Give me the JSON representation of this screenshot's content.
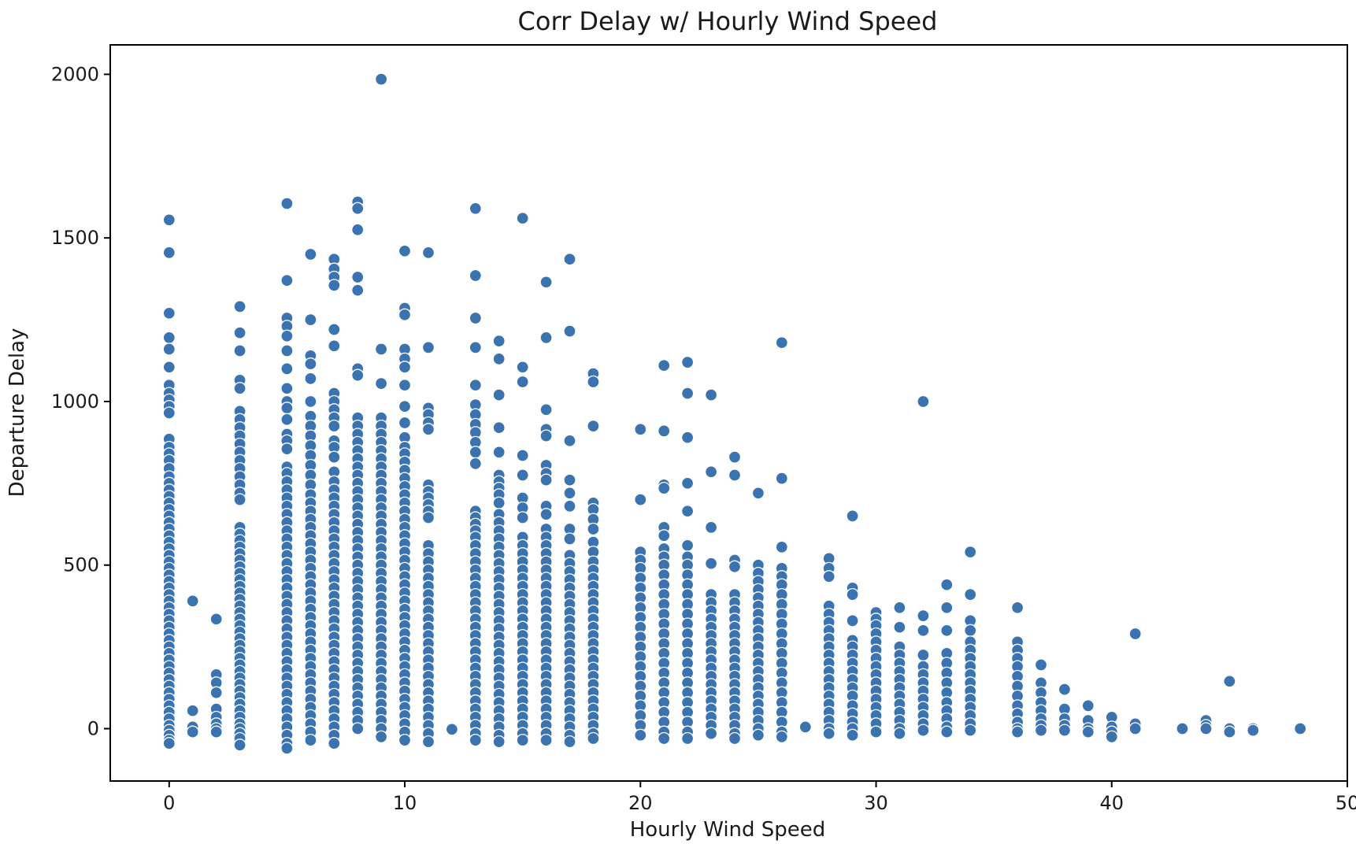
{
  "chart_data": {
    "type": "scatter",
    "title": "Corr Delay w/ Hourly Wind Speed",
    "xlabel": "Hourly Wind Speed",
    "ylabel": "Departure Delay",
    "xlim": [
      -2.5,
      50
    ],
    "ylim": [
      -160,
      2090
    ],
    "xticks": [
      0,
      10,
      20,
      30,
      40,
      50
    ],
    "yticks": [
      0,
      500,
      1000,
      1500,
      2000
    ],
    "grid": false,
    "marker_color": "#3a73b0",
    "marker_edge_color": "#ffffff",
    "columns": [
      {
        "x": 0,
        "y": [
          1555,
          1455,
          1270,
          1195,
          1160,
          1105,
          1050,
          1025,
          1005,
          985,
          965,
          885,
          860,
          840,
          820,
          795,
          770,
          750,
          730,
          710,
          690,
          670,
          650,
          630,
          610,
          590,
          570,
          550,
          530,
          510,
          490,
          470,
          450,
          430,
          410,
          390,
          370,
          350,
          330,
          310,
          290,
          270,
          250,
          230,
          210,
          190,
          170,
          150,
          130,
          110,
          90,
          70,
          50,
          30,
          10,
          -5,
          -20,
          -35,
          -45
        ]
      },
      {
        "x": 1,
        "y": [
          390,
          55,
          5,
          -10
        ]
      },
      {
        "x": 2,
        "y": [
          335,
          165,
          140,
          110,
          60,
          35,
          15,
          0,
          -10
        ]
      },
      {
        "x": 3,
        "y": [
          1290,
          1210,
          1155,
          1065,
          1040,
          970,
          945,
          920,
          895,
          870,
          845,
          820,
          795,
          770,
          745,
          720,
          700,
          615,
          595,
          575,
          555,
          535,
          515,
          495,
          475,
          455,
          435,
          415,
          395,
          375,
          355,
          335,
          315,
          295,
          275,
          255,
          235,
          215,
          195,
          175,
          155,
          135,
          115,
          95,
          75,
          55,
          35,
          15,
          0,
          -15,
          -30,
          -50
        ]
      },
      {
        "x": 5,
        "y": [
          1605,
          1370,
          1255,
          1230,
          1200,
          1155,
          1100,
          1040,
          1000,
          980,
          945,
          900,
          880,
          855,
          800,
          780,
          755,
          730,
          705,
          680,
          655,
          630,
          605,
          580,
          555,
          530,
          505,
          480,
          455,
          430,
          405,
          380,
          355,
          330,
          305,
          280,
          255,
          230,
          205,
          180,
          155,
          130,
          105,
          80,
          55,
          30,
          5,
          -20,
          -45,
          -60
        ]
      },
      {
        "x": 6,
        "y": [
          1450,
          1250,
          1140,
          1115,
          1070,
          1000,
          955,
          925,
          895,
          865,
          835,
          805,
          775,
          745,
          715,
          690,
          665,
          640,
          615,
          590,
          565,
          540,
          515,
          490,
          465,
          440,
          415,
          390,
          365,
          340,
          315,
          290,
          265,
          240,
          215,
          190,
          165,
          140,
          115,
          90,
          65,
          40,
          15,
          -10,
          -35
        ]
      },
      {
        "x": 7,
        "y": [
          1435,
          1405,
          1380,
          1355,
          1220,
          1170,
          1025,
          1000,
          975,
          950,
          925,
          880,
          860,
          830,
          785,
          755,
          730,
          705,
          680,
          655,
          630,
          605,
          580,
          555,
          530,
          505,
          480,
          455,
          430,
          405,
          380,
          355,
          330,
          305,
          280,
          255,
          230,
          205,
          180,
          155,
          130,
          105,
          80,
          55,
          30,
          5,
          -20,
          -45
        ]
      },
      {
        "x": 8,
        "y": [
          1610,
          1590,
          1525,
          1380,
          1340,
          1100,
          1080,
          950,
          925,
          900,
          875,
          850,
          825,
          800,
          775,
          750,
          725,
          700,
          675,
          650,
          625,
          600,
          575,
          550,
          525,
          500,
          475,
          450,
          425,
          400,
          375,
          350,
          325,
          300,
          275,
          250,
          225,
          200,
          175,
          150,
          125,
          100,
          75,
          50,
          25,
          0
        ]
      },
      {
        "x": 9,
        "y": [
          1985,
          1160,
          1055,
          950,
          925,
          900,
          875,
          850,
          825,
          800,
          775,
          750,
          725,
          700,
          675,
          650,
          625,
          600,
          575,
          550,
          525,
          500,
          475,
          450,
          425,
          400,
          375,
          350,
          325,
          300,
          275,
          250,
          225,
          200,
          175,
          150,
          125,
          100,
          75,
          50,
          25,
          0,
          -25
        ]
      },
      {
        "x": 10,
        "y": [
          1460,
          1285,
          1265,
          1160,
          1130,
          1105,
          1050,
          985,
          935,
          890,
          860,
          840,
          815,
          790,
          765,
          740,
          715,
          690,
          665,
          640,
          615,
          590,
          565,
          540,
          515,
          490,
          465,
          440,
          415,
          390,
          365,
          340,
          315,
          290,
          265,
          240,
          215,
          190,
          165,
          140,
          115,
          90,
          65,
          40,
          15,
          -10,
          -35
        ]
      },
      {
        "x": 11,
        "y": [
          1455,
          1165,
          980,
          960,
          935,
          915,
          745,
          725,
          705,
          685,
          665,
          645,
          560,
          535,
          510,
          485,
          460,
          435,
          410,
          385,
          360,
          335,
          310,
          285,
          260,
          235,
          210,
          185,
          160,
          135,
          110,
          85,
          60,
          35,
          10,
          -15,
          -40
        ]
      },
      {
        "x": 12,
        "y": [
          -2
        ]
      },
      {
        "x": 13,
        "y": [
          1590,
          1385,
          1255,
          1165,
          1050,
          990,
          960,
          930,
          905,
          875,
          845,
          810,
          665,
          645,
          625,
          605,
          585,
          560,
          535,
          510,
          485,
          460,
          435,
          410,
          385,
          360,
          335,
          310,
          285,
          260,
          235,
          210,
          185,
          160,
          135,
          110,
          85,
          60,
          35,
          10,
          -15,
          -35
        ]
      },
      {
        "x": 14,
        "y": [
          1185,
          1130,
          1020,
          920,
          845,
          775,
          755,
          735,
          715,
          690,
          655,
          630,
          605,
          580,
          555,
          530,
          505,
          480,
          455,
          430,
          405,
          380,
          355,
          330,
          305,
          280,
          255,
          230,
          205,
          180,
          155,
          130,
          105,
          80,
          55,
          30,
          5,
          -20,
          -40
        ]
      },
      {
        "x": 15,
        "y": [
          1560,
          1105,
          1060,
          835,
          775,
          705,
          675,
          645,
          585,
          560,
          535,
          510,
          485,
          460,
          435,
          410,
          385,
          360,
          335,
          310,
          285,
          260,
          235,
          210,
          185,
          160,
          135,
          110,
          85,
          60,
          35,
          10,
          -15,
          -35
        ]
      },
      {
        "x": 16,
        "y": [
          1365,
          1195,
          975,
          915,
          895,
          805,
          780,
          760,
          680,
          655,
          610,
          585,
          560,
          535,
          510,
          485,
          460,
          435,
          410,
          385,
          360,
          335,
          310,
          285,
          260,
          235,
          210,
          185,
          160,
          135,
          110,
          85,
          60,
          35,
          10,
          -15,
          -35
        ]
      },
      {
        "x": 17,
        "y": [
          1435,
          1215,
          880,
          760,
          720,
          680,
          610,
          580,
          530,
          505,
          480,
          455,
          430,
          405,
          380,
          355,
          330,
          305,
          280,
          255,
          230,
          205,
          180,
          155,
          130,
          105,
          80,
          55,
          30,
          5,
          -20,
          -40
        ]
      },
      {
        "x": 18,
        "y": [
          1085,
          1060,
          925,
          690,
          670,
          640,
          610,
          570,
          540,
          510,
          485,
          460,
          435,
          410,
          385,
          360,
          335,
          310,
          285,
          260,
          235,
          210,
          185,
          160,
          135,
          110,
          85,
          60,
          35,
          10,
          -15,
          -30
        ]
      },
      {
        "x": 20,
        "y": [
          915,
          700,
          540,
          515,
          490,
          460,
          430,
          400,
          370,
          340,
          310,
          280,
          250,
          220,
          190,
          160,
          130,
          100,
          70,
          40,
          10,
          -20
        ]
      },
      {
        "x": 21,
        "y": [
          1110,
          910,
          745,
          735,
          615,
          590,
          550,
          525,
          500,
          470,
          440,
          410,
          380,
          350,
          320,
          290,
          260,
          230,
          200,
          170,
          140,
          110,
          80,
          50,
          20,
          -10,
          -30
        ]
      },
      {
        "x": 22,
        "y": [
          1120,
          1025,
          890,
          750,
          665,
          560,
          525,
          500,
          470,
          440,
          410,
          380,
          350,
          320,
          290,
          260,
          230,
          200,
          170,
          140,
          110,
          80,
          50,
          20,
          -10,
          -30
        ]
      },
      {
        "x": 23,
        "y": [
          1020,
          785,
          615,
          505,
          410,
          385,
          360,
          335,
          310,
          285,
          260,
          235,
          210,
          185,
          160,
          135,
          110,
          85,
          60,
          35,
          10,
          -15
        ]
      },
      {
        "x": 24,
        "y": [
          830,
          775,
          515,
          495,
          410,
          385,
          360,
          335,
          310,
          285,
          260,
          235,
          210,
          185,
          160,
          135,
          110,
          85,
          60,
          35,
          10,
          -15,
          -30
        ]
      },
      {
        "x": 25,
        "y": [
          720,
          500,
          475,
          450,
          425,
          400,
          375,
          350,
          325,
          300,
          275,
          250,
          225,
          200,
          175,
          150,
          125,
          100,
          75,
          50,
          25,
          0,
          -20
        ]
      },
      {
        "x": 26,
        "y": [
          1180,
          765,
          555,
          490,
          465,
          440,
          410,
          380,
          350,
          320,
          290,
          260,
          230,
          200,
          170,
          140,
          110,
          80,
          50,
          20,
          -10,
          -25
        ]
      },
      {
        "x": 27,
        "y": [
          5
        ]
      },
      {
        "x": 28,
        "y": [
          520,
          490,
          465,
          375,
          350,
          325,
          300,
          275,
          250,
          225,
          200,
          175,
          150,
          125,
          100,
          75,
          50,
          25,
          0,
          -15
        ]
      },
      {
        "x": 29,
        "y": [
          650,
          430,
          410,
          330,
          270,
          250,
          225,
          200,
          175,
          150,
          125,
          100,
          70,
          45,
          20,
          0,
          -20
        ]
      },
      {
        "x": 30,
        "y": [
          355,
          335,
          315,
          290,
          265,
          240,
          215,
          190,
          165,
          140,
          115,
          90,
          65,
          40,
          15,
          -10
        ]
      },
      {
        "x": 31,
        "y": [
          370,
          310,
          250,
          225,
          200,
          175,
          150,
          125,
          100,
          75,
          50,
          25,
          0,
          -15
        ]
      },
      {
        "x": 32,
        "y": [
          1000,
          345,
          300,
          225,
          190,
          165,
          140,
          115,
          90,
          65,
          40,
          15,
          -5
        ]
      },
      {
        "x": 33,
        "y": [
          440,
          370,
          300,
          230,
          200,
          170,
          140,
          110,
          80,
          55,
          30,
          5,
          -10
        ]
      },
      {
        "x": 34,
        "y": [
          540,
          410,
          330,
          300,
          265,
          240,
          215,
          190,
          165,
          140,
          115,
          90,
          65,
          40,
          15,
          -5
        ]
      },
      {
        "x": 36,
        "y": [
          370,
          265,
          240,
          215,
          190,
          160,
          130,
          100,
          70,
          45,
          20,
          0,
          -10
        ]
      },
      {
        "x": 37,
        "y": [
          195,
          140,
          110,
          80,
          55,
          30,
          10,
          -5
        ]
      },
      {
        "x": 38,
        "y": [
          120,
          60,
          30,
          10,
          -5
        ]
      },
      {
        "x": 39,
        "y": [
          70,
          25,
          0,
          -10
        ]
      },
      {
        "x": 40,
        "y": [
          35,
          5,
          -10,
          -25
        ]
      },
      {
        "x": 41,
        "y": [
          290,
          15,
          0
        ]
      },
      {
        "x": 43,
        "y": [
          0
        ]
      },
      {
        "x": 44,
        "y": [
          25,
          10,
          0
        ]
      },
      {
        "x": 45,
        "y": [
          145,
          0,
          -10
        ]
      },
      {
        "x": 46,
        "y": [
          0,
          -5
        ]
      },
      {
        "x": 48,
        "y": [
          0
        ]
      }
    ]
  }
}
